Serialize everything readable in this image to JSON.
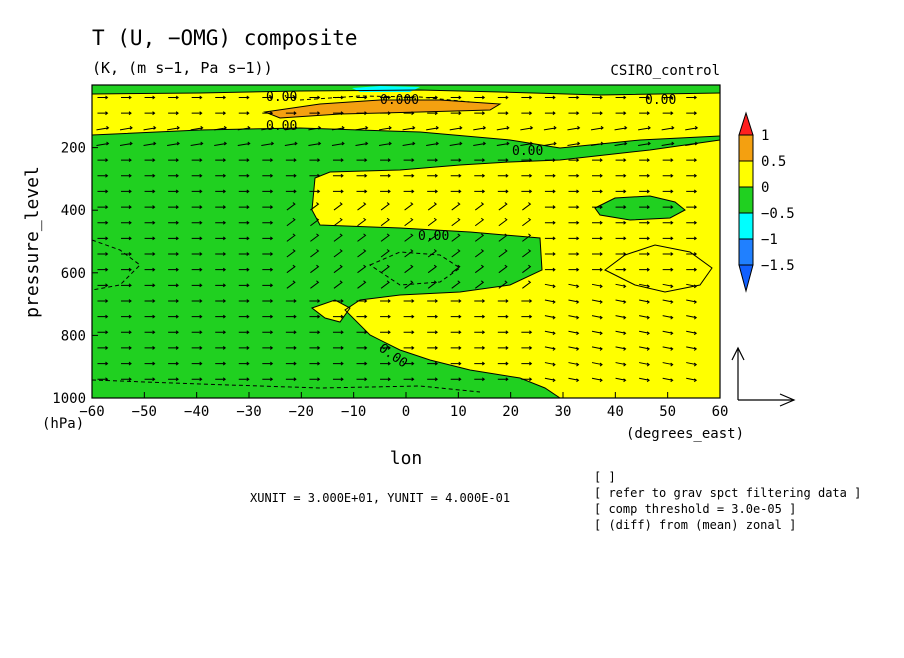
{
  "chart_data": {
    "type": "contour",
    "title": "T (U, −OMG) composite",
    "subtitle": "(K, (m s−1, Pa s−1))",
    "dataset": "CSIRO_control",
    "xlabel": "lon",
    "x_unit": "(degrees_east)",
    "ylabel": "pressure_level",
    "y_unit": "(hPa)",
    "xlim": [
      -60,
      60
    ],
    "ylim": [
      1000,
      0
    ],
    "x_ticks": [
      -60,
      -50,
      -40,
      -30,
      -20,
      -10,
      0,
      10,
      20,
      30,
      40,
      50,
      60
    ],
    "y_ticks": [
      200,
      400,
      600,
      800,
      1000
    ],
    "x_tick_labels": [
      "−60",
      "−50",
      "−40",
      "−30",
      "−20",
      "−10",
      "0",
      "10",
      "20",
      "30",
      "40",
      "50",
      "60"
    ],
    "y_tick_labels": [
      "200",
      "400",
      "600",
      "800",
      "1000"
    ],
    "contour_labels": [
      "0.00",
      "0.000",
      "0.00",
      "0.00",
      "0.00",
      "0.00",
      "0.00"
    ],
    "colorbar": {
      "levels": [
        1,
        0.5,
        0,
        -0.5,
        -1,
        -1.5
      ],
      "labels": [
        "1",
        "0.5",
        "0",
        "−0.5",
        "−1",
        "−1.5"
      ],
      "colors": [
        "#ff2020",
        "#f4a010",
        "#ffff00",
        "#20d020",
        "#00ffff",
        "#2080ff",
        "#1060ff"
      ]
    },
    "unit_vector_text": "XUNIT = 3.000E+01, YUNIT = 4.000E-01",
    "notes": [
      "[  ]",
      "[ refer to grav spct filtering data ]",
      "[ comp threshold = 3.0e-05 ]",
      "[ (diff) from (mean) zonal ]"
    ]
  },
  "colors": {
    "yellow": "#ffff00",
    "green": "#20d020",
    "orange": "#f4a010",
    "cyan": "#00ffff"
  }
}
